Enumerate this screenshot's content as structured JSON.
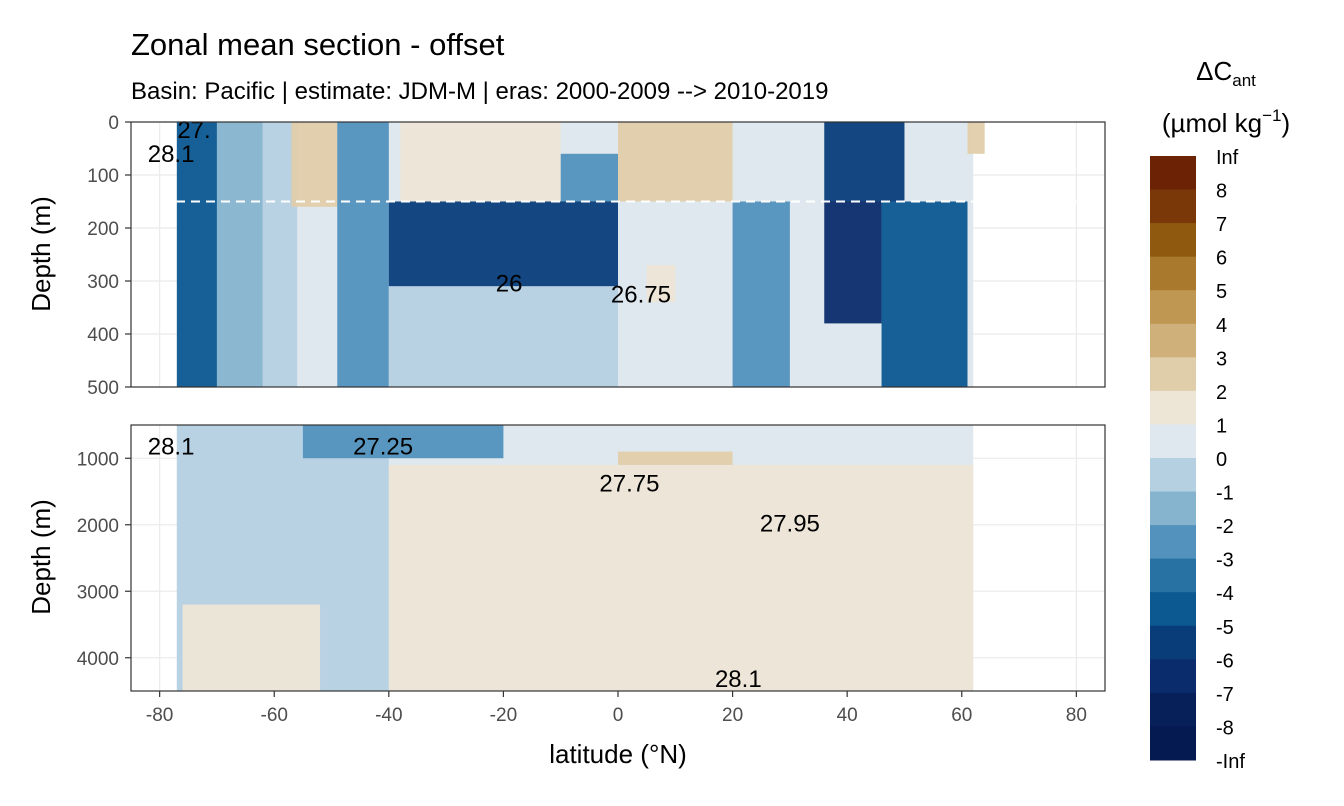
{
  "chart_data": {
    "type": "contour",
    "title": "Zonal mean section - offset",
    "subtitle": "Basin: Pacific | estimate: JDM-M | eras: 2000-2009 --> 2010-2019",
    "xlabel": "latitude (°N)",
    "ylabel": "Depth (m)",
    "xlim": [
      -85,
      85
    ],
    "x_ticks": [
      -80,
      -60,
      -40,
      -20,
      0,
      20,
      40,
      60,
      80
    ],
    "x_tick_labels": [
      "-80",
      "-60",
      "-40",
      "-20",
      "0",
      "20",
      "40",
      "60",
      "80"
    ],
    "panels": [
      {
        "name": "upper",
        "ylim": [
          0,
          500
        ],
        "y_ticks": [
          0,
          100,
          200,
          300,
          400,
          500
        ],
        "y_tick_labels": [
          "0",
          "100",
          "200",
          "300",
          "400",
          "500"
        ],
        "reference_depth": 150,
        "data_lat_range": [
          -77,
          62
        ],
        "fill_regions": [
          {
            "lat_range": [
              -77,
              -70
            ],
            "depth_range": [
              0,
              500
            ],
            "level": -5
          },
          {
            "lat_range": [
              -70,
              -62
            ],
            "depth_range": [
              0,
              500
            ],
            "level": -2
          },
          {
            "lat_range": [
              -62,
              -56
            ],
            "depth_range": [
              0,
              500
            ],
            "level": -1
          },
          {
            "lat_range": [
              -57,
              -49
            ],
            "depth_range": [
              0,
              160
            ],
            "level": 2
          },
          {
            "lat_range": [
              -49,
              -40
            ],
            "depth_range": [
              0,
              500
            ],
            "level": -3
          },
          {
            "lat_range": [
              -40,
              0
            ],
            "depth_range": [
              150,
              310
            ],
            "level": -6
          },
          {
            "lat_range": [
              -40,
              0
            ],
            "depth_range": [
              310,
              500
            ],
            "level": -1
          },
          {
            "lat_range": [
              -38,
              -10
            ],
            "depth_range": [
              0,
              150
            ],
            "level": 1
          },
          {
            "lat_range": [
              -10,
              0
            ],
            "depth_range": [
              60,
              150
            ],
            "level": -3
          },
          {
            "lat_range": [
              0,
              20
            ],
            "depth_range": [
              0,
              150
            ],
            "level": 2
          },
          {
            "lat_range": [
              5,
              10
            ],
            "depth_range": [
              270,
              340
            ],
            "level": 1
          },
          {
            "lat_range": [
              20,
              30
            ],
            "depth_range": [
              150,
              500
            ],
            "level": -3
          },
          {
            "lat_range": [
              36,
              50
            ],
            "depth_range": [
              0,
              150
            ],
            "level": -6
          },
          {
            "lat_range": [
              36,
              46
            ],
            "depth_range": [
              150,
              380
            ],
            "level": -7
          },
          {
            "lat_range": [
              46,
              61
            ],
            "depth_range": [
              150,
              500
            ],
            "level": -5
          },
          {
            "lat_range": [
              61,
              64
            ],
            "depth_range": [
              0,
              60
            ],
            "level": 2
          }
        ],
        "contour_labels": [
          {
            "text": "26",
            "lat": -19,
            "depth": 305
          },
          {
            "text": "26.75",
            "lat": 4,
            "depth": 325
          },
          {
            "text": "28.1",
            "lat": -78,
            "depth": 60
          },
          {
            "text": "27.",
            "lat": -74,
            "depth": 15
          }
        ]
      },
      {
        "name": "lower",
        "ylim": [
          500,
          4500
        ],
        "y_ticks": [
          1000,
          2000,
          3000,
          4000
        ],
        "y_tick_labels": [
          "1000",
          "2000",
          "3000",
          "4000"
        ],
        "data_lat_range": [
          -77,
          62
        ],
        "fill_regions": [
          {
            "lat_range": [
              -77,
              -40
            ],
            "depth_range": [
              500,
              4500
            ],
            "level": -1
          },
          {
            "lat_range": [
              -40,
              62
            ],
            "depth_range": [
              1100,
              4500
            ],
            "level": 1
          },
          {
            "lat_range": [
              -76,
              -52
            ],
            "depth_range": [
              3200,
              4500
            ],
            "level": 1
          },
          {
            "lat_range": [
              -55,
              -20
            ],
            "depth_range": [
              500,
              1000
            ],
            "level": -3
          },
          {
            "lat_range": [
              0,
              20
            ],
            "depth_range": [
              900,
              1100
            ],
            "level": 2
          }
        ],
        "contour_labels": [
          {
            "text": "28.1",
            "lat": -78,
            "depth": 820
          },
          {
            "text": "27.25",
            "lat": -41,
            "depth": 820
          },
          {
            "text": "27.75",
            "lat": 2,
            "depth": 1380
          },
          {
            "text": "27.95",
            "lat": 30,
            "depth": 1980
          },
          {
            "text": "28.1",
            "lat": 21,
            "depth": 4320
          }
        ]
      }
    ],
    "legend": {
      "title": "ΔC",
      "title_subscript": "ant",
      "unit_prefix": "(µmol kg",
      "unit_superscript": "−1",
      "unit_suffix": ")",
      "position": "right",
      "levels": [
        {
          "label": "Inf",
          "color": "#67000d"
        },
        {
          "label": "8",
          "color": "#6b2205"
        },
        {
          "label": "7",
          "color": "#7a3808"
        },
        {
          "label": "6",
          "color": "#8f5a10"
        },
        {
          "label": "5",
          "color": "#a97a2e"
        },
        {
          "label": "4",
          "color": "#bf9753"
        },
        {
          "label": "3",
          "color": "#cfb07a"
        },
        {
          "label": "2",
          "color": "#e0ceaa"
        },
        {
          "label": "1",
          "color": "#ede6d6"
        },
        {
          "label": "0",
          "color": "#dfe8ee"
        },
        {
          "label": "-1",
          "color": "#b5d0e1"
        },
        {
          "label": "-2",
          "color": "#86b4cf"
        },
        {
          "label": "-3",
          "color": "#5292bd"
        },
        {
          "label": "-4",
          "color": "#2771a3"
        },
        {
          "label": "-5",
          "color": "#0c5891"
        },
        {
          "label": "-6",
          "color": "#083d7a"
        },
        {
          "label": "-7",
          "color": "#0a2c6c"
        },
        {
          "label": "-8",
          "color": "#08205a"
        },
        {
          "label": "-Inf",
          "color": "#061a52"
        }
      ]
    }
  }
}
